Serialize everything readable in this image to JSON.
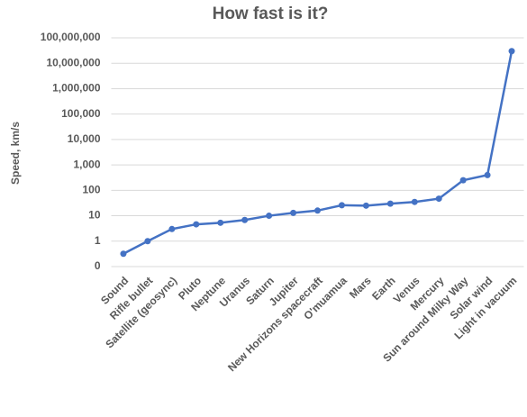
{
  "chart_data": {
    "type": "line",
    "title": "How fast is it?",
    "y_label": "Speed, km/s",
    "categories": [
      "Sound",
      "Rifle bullet",
      "Satellite (geosync)",
      "Pluto",
      "Neptune",
      "Uranus",
      "Saturn",
      "Jupiter",
      "New Horizons spacecraft",
      "O'muamua",
      "Mars",
      "Earth",
      "Venus",
      "Mercury",
      "Sun around Milky Way",
      "Solar wind",
      "Light in vacuum"
    ],
    "series": [
      {
        "name": "Speed",
        "color": "#4472c4",
        "values": [
          0.32,
          1,
          3,
          4.6,
          5.3,
          6.8,
          10,
          13,
          16,
          26,
          25,
          30,
          35,
          47,
          250,
          400,
          30000000
        ]
      }
    ],
    "ylim": [
      0.1,
      100000000
    ],
    "log_scale": true,
    "grid": true,
    "yticks": [
      {
        "value": 0.1,
        "label": "0"
      },
      1,
      10,
      {
        "value": 100,
        "label": "100"
      },
      {
        "value": 1000,
        "label": "1,000"
      },
      {
        "value": 10000,
        "label": "10,000"
      },
      {
        "value": 100000,
        "label": "100,000"
      },
      {
        "value": 1000000,
        "label": "1,000,000"
      },
      {
        "value": 10000000,
        "label": "10,000,000"
      },
      {
        "value": 100000000,
        "label": "100,000,000"
      }
    ]
  }
}
